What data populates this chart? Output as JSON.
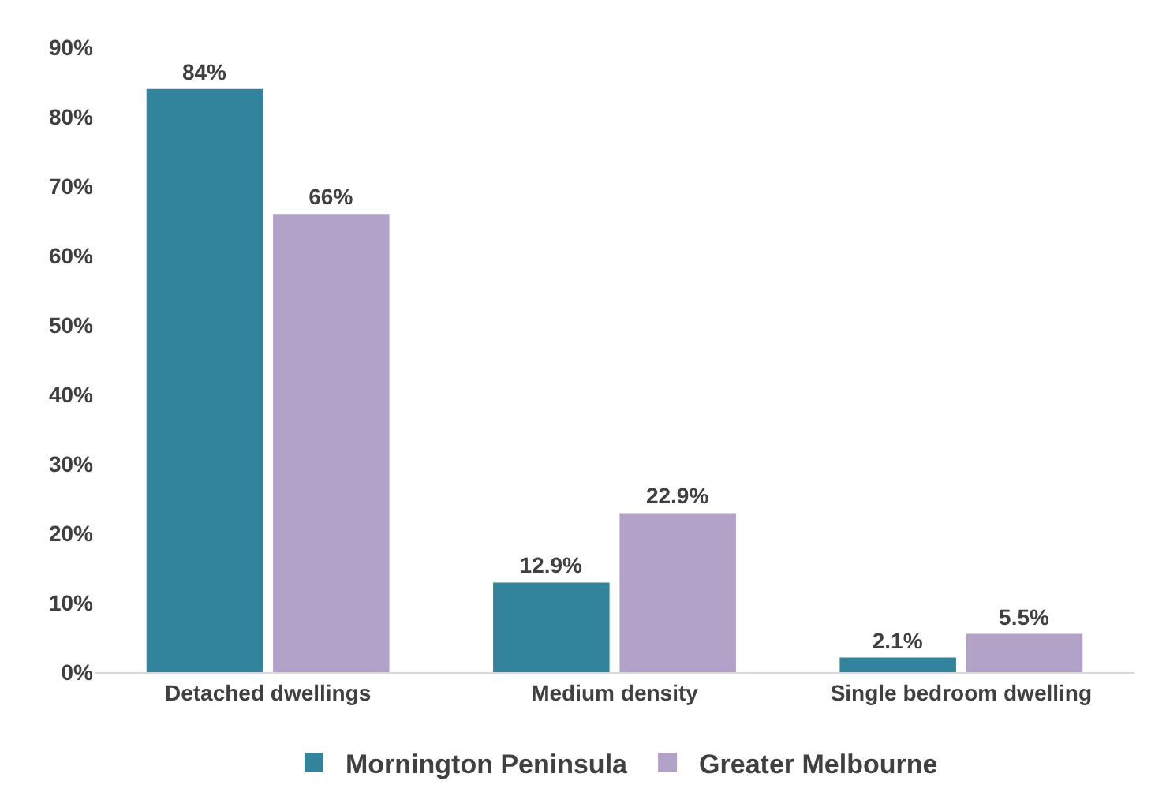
{
  "chart_data": {
    "type": "bar",
    "categories": [
      "Detached dwellings",
      "Medium density",
      "Single bedroom dwelling"
    ],
    "series": [
      {
        "name": "Mornington Peninsula",
        "color": "#31849b",
        "values": [
          84,
          12.9,
          2.1
        ],
        "value_labels": [
          "84%",
          "12.9%",
          "2.1%"
        ]
      },
      {
        "name": "Greater Melbourne",
        "color": "#b3a2c7",
        "values": [
          66,
          22.9,
          5.5
        ],
        "value_labels": [
          "66%",
          "22.9%",
          "5.5%"
        ]
      }
    ],
    "ylim": [
      0,
      90
    ],
    "yticks": [
      {
        "value": 0,
        "label": "0%"
      },
      {
        "value": 10,
        "label": "10%"
      },
      {
        "value": 20,
        "label": "20%"
      },
      {
        "value": 30,
        "label": "30%"
      },
      {
        "value": 40,
        "label": "40%"
      },
      {
        "value": 50,
        "label": "50%"
      },
      {
        "value": 60,
        "label": "60%"
      },
      {
        "value": 70,
        "label": "70%"
      },
      {
        "value": 80,
        "label": "80%"
      },
      {
        "value": 90,
        "label": "90%"
      }
    ],
    "grid": false,
    "legend": "bottom"
  }
}
